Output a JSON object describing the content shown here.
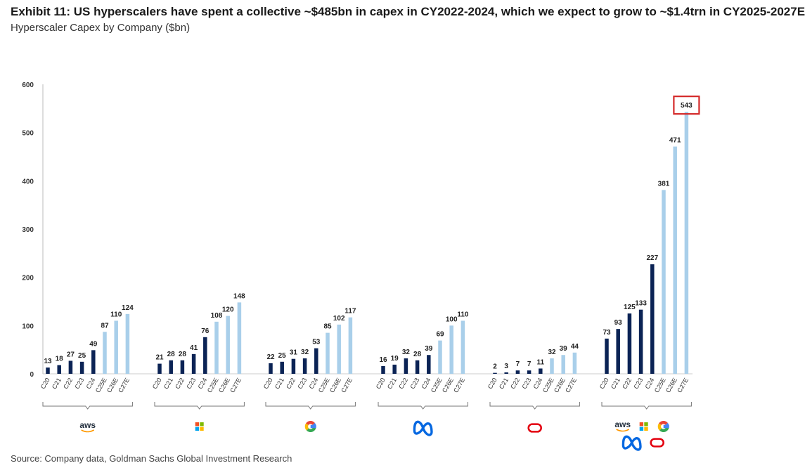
{
  "title": "Exhibit 11: US hyperscalers have spent a collective ~$485bn in capex in CY2022-2024, which we expect to grow to ~$1.4trn in CY2025-2027E",
  "subtitle": "Hyperscaler Capex by Company ($bn)",
  "source": "Source: Company data, Goldman Sachs Global Investment Research",
  "colors": {
    "actual": "#0b2355",
    "estimate": "#a9cfea",
    "highlight": "#d42a2a"
  },
  "chart_data": {
    "type": "bar",
    "ylim": [
      0,
      600
    ],
    "yticks": [
      0,
      100,
      200,
      300,
      400,
      500,
      600
    ],
    "grid": false,
    "categories": [
      "C20",
      "C21",
      "C22",
      "C23",
      "C24",
      "C25E",
      "C26E",
      "C27E"
    ],
    "estimate_categories": [
      "C25E",
      "C26E",
      "C27E"
    ],
    "groups": [
      {
        "logo": "aws-logo",
        "values": [
          13,
          18,
          27,
          25,
          49,
          87,
          110,
          124
        ]
      },
      {
        "logo": "microsoft-logo",
        "values": [
          21,
          28,
          28,
          41,
          76,
          108,
          120,
          148
        ]
      },
      {
        "logo": "google-logo",
        "values": [
          22,
          25,
          31,
          32,
          53,
          85,
          102,
          117
        ]
      },
      {
        "logo": "meta-logo",
        "values": [
          16,
          19,
          32,
          28,
          39,
          69,
          100,
          110
        ]
      },
      {
        "logo": "oracle-logo",
        "values": [
          2,
          3,
          7,
          7,
          11,
          32,
          39,
          44
        ]
      },
      {
        "logo": "combined-logos",
        "values": [
          73,
          93,
          125,
          133,
          227,
          381,
          471,
          543
        ],
        "highlight_last": true
      }
    ]
  },
  "logo_text": {
    "aws": "aws"
  }
}
